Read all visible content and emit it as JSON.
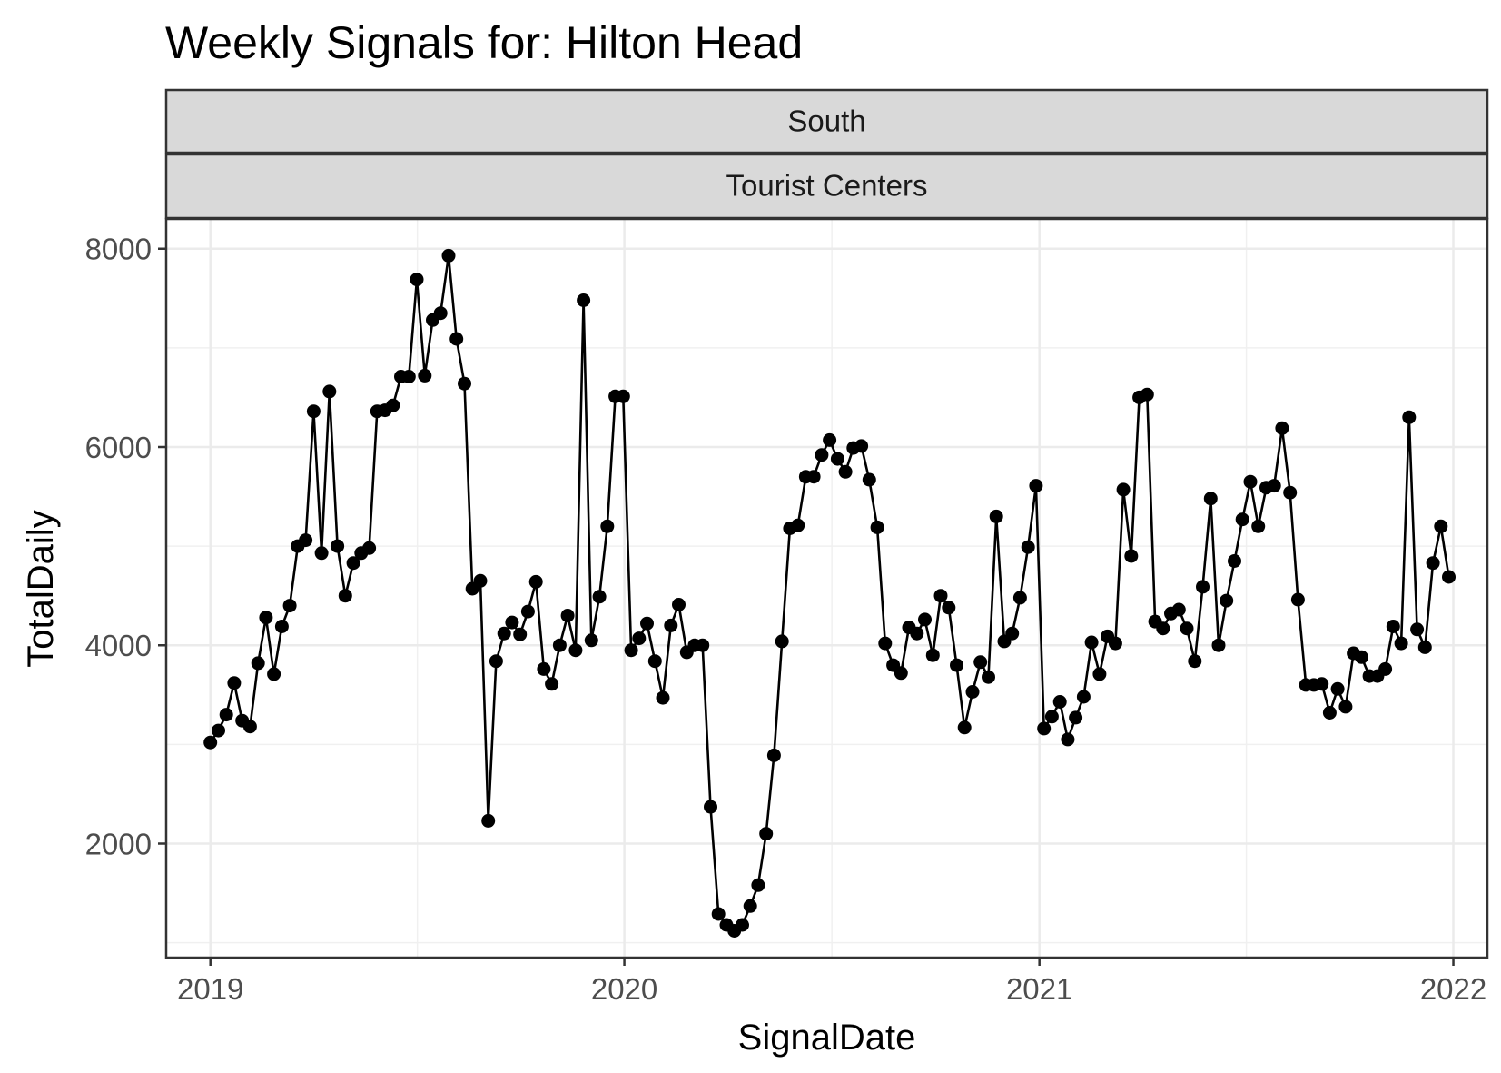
{
  "chart_data": {
    "type": "line",
    "title": "Weekly Signals for: Hilton Head",
    "facets": [
      "South",
      "Tourist Centers"
    ],
    "xlabel": "SignalDate",
    "ylabel": "TotalDaily",
    "x_ticks": [
      "2019",
      "2020",
      "2021",
      "2022"
    ],
    "y_ticks": [
      2000,
      4000,
      6000,
      8000
    ],
    "xlim": [
      "2018-11-23",
      "2022-01-31"
    ],
    "ylim": [
      850,
      8300
    ],
    "grid": true,
    "legend": "none",
    "line_color": "#000000",
    "series": [
      {
        "x": [
          "2019-01-01",
          "2019-01-08",
          "2019-01-15",
          "2019-01-22",
          "2019-01-29",
          "2019-02-05",
          "2019-02-12",
          "2019-02-19",
          "2019-02-26",
          "2019-03-05",
          "2019-03-12",
          "2019-03-19",
          "2019-03-26",
          "2019-04-02",
          "2019-04-09",
          "2019-04-16",
          "2019-04-23",
          "2019-04-30",
          "2019-05-07",
          "2019-05-14",
          "2019-05-21",
          "2019-05-28",
          "2019-06-04",
          "2019-06-11",
          "2019-06-18",
          "2019-06-25",
          "2019-07-02",
          "2019-07-09",
          "2019-07-16",
          "2019-07-23",
          "2019-07-30",
          "2019-08-06",
          "2019-08-13",
          "2019-08-20",
          "2019-08-27",
          "2019-09-03",
          "2019-09-10",
          "2019-09-17",
          "2019-09-24",
          "2019-10-01",
          "2019-10-08",
          "2019-10-15",
          "2019-10-22",
          "2019-10-29",
          "2019-11-05",
          "2019-11-12",
          "2019-11-19",
          "2019-11-26",
          "2019-12-03",
          "2019-12-10",
          "2019-12-17",
          "2019-12-24",
          "2019-12-31",
          "2020-01-07",
          "2020-01-14",
          "2020-01-21",
          "2020-01-28",
          "2020-02-04",
          "2020-02-11",
          "2020-02-18",
          "2020-02-25",
          "2020-03-03",
          "2020-03-10",
          "2020-03-17",
          "2020-03-24",
          "2020-03-31",
          "2020-04-07",
          "2020-04-14",
          "2020-04-21",
          "2020-04-28",
          "2020-05-05",
          "2020-05-12",
          "2020-05-19",
          "2020-05-26",
          "2020-06-02",
          "2020-06-09",
          "2020-06-16",
          "2020-06-23",
          "2020-06-30",
          "2020-07-07",
          "2020-07-14",
          "2020-07-21",
          "2020-07-28",
          "2020-08-04",
          "2020-08-11",
          "2020-08-18",
          "2020-08-25",
          "2020-09-01",
          "2020-09-08",
          "2020-09-15",
          "2020-09-22",
          "2020-09-29",
          "2020-10-06",
          "2020-10-13",
          "2020-10-20",
          "2020-10-27",
          "2020-11-03",
          "2020-11-10",
          "2020-11-17",
          "2020-11-24",
          "2020-12-01",
          "2020-12-08",
          "2020-12-15",
          "2020-12-22",
          "2020-12-29",
          "2021-01-05",
          "2021-01-12",
          "2021-01-19",
          "2021-01-26",
          "2021-02-02",
          "2021-02-09",
          "2021-02-16",
          "2021-02-23",
          "2021-03-02",
          "2021-03-09",
          "2021-03-16",
          "2021-03-23",
          "2021-03-30",
          "2021-04-06",
          "2021-04-13",
          "2021-04-20",
          "2021-04-27",
          "2021-05-04",
          "2021-05-11",
          "2021-05-18",
          "2021-05-25",
          "2021-06-01",
          "2021-06-08",
          "2021-06-15",
          "2021-06-22",
          "2021-06-29",
          "2021-07-06",
          "2021-07-13",
          "2021-07-20",
          "2021-07-27",
          "2021-08-03",
          "2021-08-10",
          "2021-08-17",
          "2021-08-24",
          "2021-08-31",
          "2021-09-07",
          "2021-09-14",
          "2021-09-21",
          "2021-09-28",
          "2021-10-05",
          "2021-10-12",
          "2021-10-19",
          "2021-10-26",
          "2021-11-02",
          "2021-11-09",
          "2021-11-16",
          "2021-11-23",
          "2021-11-30",
          "2021-12-07",
          "2021-12-14",
          "2021-12-21",
          "2021-12-28"
        ],
        "y": [
          3020,
          3140,
          3300,
          3620,
          3240,
          3180,
          3820,
          4280,
          3710,
          4190,
          4400,
          5000,
          5060,
          6360,
          4930,
          6560,
          5000,
          4500,
          4830,
          4930,
          4980,
          6360,
          6370,
          6420,
          6710,
          6710,
          7690,
          6720,
          7280,
          7350,
          7930,
          7090,
          6640,
          4570,
          4650,
          2230,
          3840,
          4120,
          4230,
          4110,
          4340,
          4640,
          3760,
          3610,
          4000,
          4300,
          3950,
          7480,
          4050,
          4490,
          5200,
          6510,
          6510,
          3950,
          4070,
          4220,
          3840,
          3470,
          4200,
          4410,
          3930,
          4000,
          4000,
          2370,
          1290,
          1180,
          1120,
          1180,
          1370,
          1580,
          2100,
          2890,
          4040,
          5180,
          5210,
          5700,
          5700,
          5920,
          6070,
          5880,
          5750,
          5990,
          6010,
          5670,
          5190,
          4020,
          3800,
          3720,
          4180,
          4120,
          4260,
          3900,
          4500,
          4380,
          3800,
          3170,
          3530,
          3830,
          3680,
          5300,
          4040,
          4120,
          4480,
          4990,
          5610,
          3160,
          3280,
          3430,
          3050,
          3270,
          3480,
          4030,
          3710,
          4090,
          4020,
          5570,
          4900,
          6500,
          6530,
          4240,
          4170,
          4320,
          4360,
          4170,
          3840,
          4590,
          5480,
          4000,
          4450,
          4850,
          5270,
          5650,
          5200,
          5590,
          5610,
          6190,
          5540,
          4460,
          3600,
          3600,
          3610,
          3320,
          3560,
          3380,
          3920,
          3880,
          3690,
          3690,
          3760,
          4190,
          4020,
          6300,
          4160,
          3980,
          4830,
          5200,
          4690
        ]
      }
    ]
  }
}
